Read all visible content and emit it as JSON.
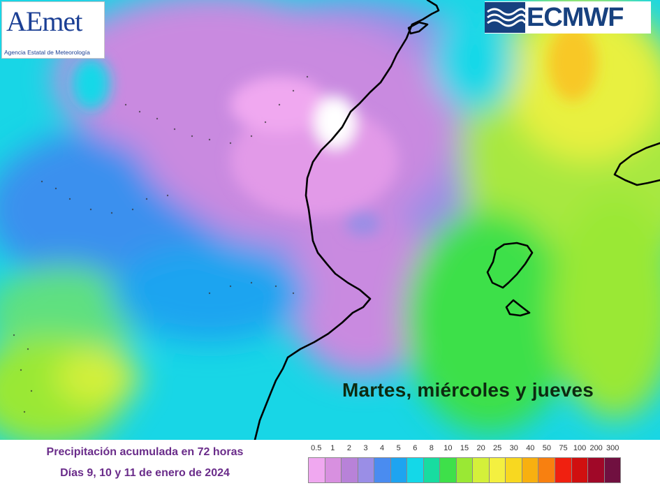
{
  "logos": {
    "aemet": {
      "wordmark": "AEmet",
      "subtitle": "Agencia Estatal de Meteorología"
    },
    "ecmwf": {
      "wordmark": "ECMWF"
    }
  },
  "overlay_caption": "Martes, miércoles y jueves",
  "footer": {
    "line1": "Precipitación  acumulada  en 72 horas",
    "line2": "Días 9, 10 y 11 de enero de 2024"
  },
  "legend": {
    "labels": [
      "0.5",
      "1",
      "2",
      "3",
      "4",
      "5",
      "6",
      "8",
      "10",
      "15",
      "20",
      "25",
      "30",
      "40",
      "50",
      "75",
      "100",
      "200",
      "300"
    ],
    "colors": [
      "#f0a8f0",
      "#d890e0",
      "#b882d8",
      "#9a8ee6",
      "#4a8cf0",
      "#1ea4f0",
      "#14d8e8",
      "#18dca0",
      "#3ee04a",
      "#9ae834",
      "#d4f03a",
      "#f4f040",
      "#f8d820",
      "#f8b010",
      "#f88010",
      "#f02010",
      "#d01010",
      "#a00828",
      "#701040"
    ]
  }
}
